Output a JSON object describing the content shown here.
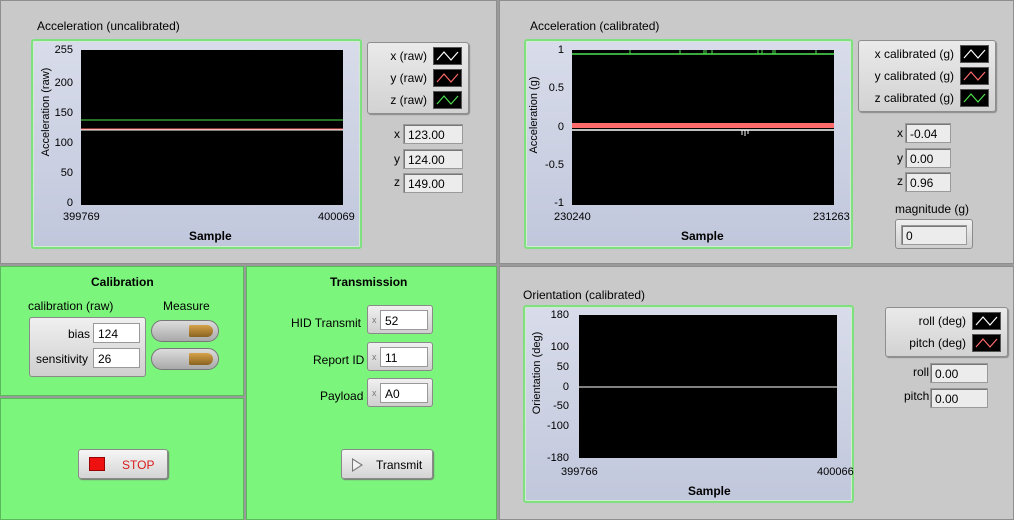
{
  "accel_raw": {
    "title": "Acceleration (uncalibrated)",
    "ylabel": "Acceleration (raw)",
    "xlabel": "Sample",
    "yticks": [
      "255",
      "200",
      "150",
      "100",
      "50",
      "0"
    ],
    "xmin": "399769",
    "xmax": "400069",
    "legend": [
      {
        "label": "x (raw)",
        "color": "#ffffff"
      },
      {
        "label": "y (raw)",
        "color": "#ff6a6a"
      },
      {
        "label": "z (raw)",
        "color": "#4ee04e"
      }
    ],
    "x_label": "x",
    "x_value": "123.00",
    "y_label": "y",
    "y_value": "124.00",
    "z_label": "z",
    "z_value": "149.00"
  },
  "accel_cal": {
    "title": "Acceleration (calibrated)",
    "ylabel": "Acceleration (g)",
    "xlabel": "Sample",
    "yticks": [
      "1",
      "0.5",
      "0",
      "-0.5",
      "-1"
    ],
    "xmin": "230240",
    "xmax": "231263",
    "legend": [
      {
        "label": "x calibrated (g)",
        "color": "#ffffff"
      },
      {
        "label": "y calibrated (g)",
        "color": "#ff6a6a"
      },
      {
        "label": "z calibrated (g)",
        "color": "#4ee04e"
      }
    ],
    "x_label": "x",
    "x_value": "-0.04",
    "y_label": "y",
    "y_value": "0.00",
    "z_label": "z",
    "z_value": "0.96",
    "magnitude_label": "magnitude (g)",
    "magnitude_value": "0"
  },
  "calibration": {
    "title": "Calibration",
    "group_label": "calibration (raw)",
    "bias_label": "bias",
    "bias_value": "124",
    "sensitivity_label": "sensitivity",
    "sensitivity_value": "26",
    "measure_label": "Measure"
  },
  "stop": {
    "label": "STOP"
  },
  "transmission": {
    "title": "Transmission",
    "hid_label": "HID Transmit",
    "hid_value": "52",
    "report_label": "Report ID",
    "report_value": "11",
    "payload_label": "Payload",
    "payload_value": "A0",
    "radix": "x",
    "transmit_label": "Transmit"
  },
  "orientation": {
    "title": "Orientation (calibrated)",
    "ylabel": "Orientation (deg)",
    "xlabel": "Sample",
    "yticks": [
      "180",
      "100",
      "50",
      "0",
      "-50",
      "-100",
      "-180"
    ],
    "xmin": "399766",
    "xmax": "400066",
    "legend": [
      {
        "label": "roll (deg)",
        "color": "#ffffff"
      },
      {
        "label": "pitch (deg)",
        "color": "#ff6a6a"
      }
    ],
    "roll_label": "roll",
    "roll_value": "0.00",
    "pitch_label": "pitch",
    "pitch_value": "0.00"
  }
}
